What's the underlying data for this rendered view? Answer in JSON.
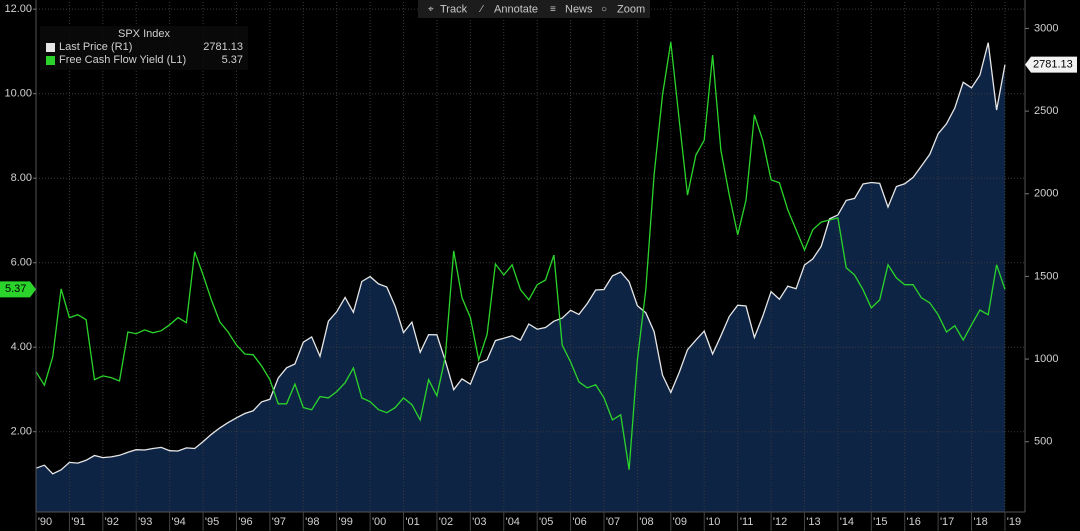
{
  "toolbar": [
    "Track",
    "Annotate",
    "News",
    "Zoom"
  ],
  "chart_data": {
    "type": "line",
    "legend_title": "SPX Index",
    "legend": "upper left",
    "grid": true,
    "x": [
      1990,
      1990.25,
      1990.5,
      1990.75,
      1991,
      1991.25,
      1991.5,
      1991.75,
      1992,
      1992.25,
      1992.5,
      1992.75,
      1993,
      1993.25,
      1993.5,
      1993.75,
      1994,
      1994.25,
      1994.5,
      1994.75,
      1995,
      1995.25,
      1995.5,
      1995.75,
      1996,
      1996.25,
      1996.5,
      1996.75,
      1997,
      1997.25,
      1997.5,
      1997.75,
      1998,
      1998.25,
      1998.5,
      1998.75,
      1999,
      1999.25,
      1999.5,
      1999.75,
      2000,
      2000.25,
      2000.5,
      2000.75,
      2001,
      2001.25,
      2001.5,
      2001.75,
      2002,
      2002.25,
      2002.5,
      2002.75,
      2003,
      2003.25,
      2003.5,
      2003.75,
      2004,
      2004.25,
      2004.5,
      2004.75,
      2005,
      2005.25,
      2005.5,
      2005.75,
      2006,
      2006.25,
      2006.5,
      2006.75,
      2007,
      2007.25,
      2007.5,
      2007.75,
      2008,
      2008.25,
      2008.5,
      2008.75,
      2009,
      2009.25,
      2009.5,
      2009.75,
      2010,
      2010.25,
      2010.5,
      2010.75,
      2011,
      2011.25,
      2011.5,
      2011.75,
      2012,
      2012.25,
      2012.5,
      2012.75,
      2013,
      2013.25,
      2013.5,
      2013.75,
      2014,
      2014.25,
      2014.5,
      2014.75,
      2015,
      2015.25,
      2015.5,
      2015.75,
      2016,
      2016.25,
      2016.5,
      2016.75,
      2017,
      2017.25,
      2017.5,
      2017.75,
      2018,
      2018.25,
      2018.5,
      2018.75,
      2019
    ],
    "series": [
      {
        "name": "Last Price (R1)",
        "color": "#e6e6e6",
        "fill": "#0e2444",
        "axis": "y2",
        "values": [
          340,
          358,
          306,
          330,
          375,
          371,
          388,
          417,
          404,
          408,
          418,
          436,
          452,
          450,
          459,
          466,
          446,
          444,
          463,
          459,
          501,
          545,
          584,
          616,
          645,
          671,
          687,
          741,
          757,
          885,
          947,
          970,
          1102,
          1134,
          1017,
          1229,
          1286,
          1373,
          1283,
          1469,
          1499,
          1455,
          1436,
          1320,
          1160,
          1224,
          1041,
          1148,
          1147,
          990,
          815,
          880,
          848,
          975,
          996,
          1112,
          1126,
          1141,
          1115,
          1212,
          1181,
          1191,
          1229,
          1248,
          1295,
          1270,
          1336,
          1418,
          1421,
          1503,
          1527,
          1468,
          1323,
          1280,
          1166,
          903,
          798,
          919,
          1057,
          1115,
          1169,
          1031,
          1141,
          1258,
          1326,
          1321,
          1131,
          1258,
          1408,
          1362,
          1441,
          1426,
          1569,
          1606,
          1682,
          1848,
          1872,
          1960,
          1972,
          2059,
          2068,
          2063,
          1920,
          2044,
          2060,
          2099,
          2168,
          2239,
          2363,
          2423,
          2519,
          2674,
          2641,
          2718,
          2914,
          2507,
          2781.13
        ]
      },
      {
        "name": "Free Cash Flow Yield (L1)",
        "color": "#2bd42b",
        "axis": "y",
        "values": [
          3.42,
          3.1,
          3.77,
          5.38,
          4.7,
          4.77,
          4.65,
          3.23,
          3.32,
          3.28,
          3.2,
          4.36,
          4.32,
          4.41,
          4.34,
          4.39,
          4.53,
          4.7,
          4.58,
          6.26,
          5.71,
          5.12,
          4.6,
          4.36,
          4.05,
          3.84,
          3.82,
          3.56,
          3.23,
          2.66,
          2.66,
          3.13,
          2.57,
          2.52,
          2.83,
          2.8,
          2.95,
          3.16,
          3.51,
          2.8,
          2.71,
          2.52,
          2.45,
          2.57,
          2.8,
          2.64,
          2.28,
          3.23,
          2.85,
          3.77,
          6.28,
          5.17,
          4.7,
          3.7,
          4.3,
          5.97,
          5.71,
          5.95,
          5.36,
          5.12,
          5.48,
          5.59,
          6.18,
          4.05,
          3.65,
          3.18,
          3.04,
          3.11,
          2.8,
          2.28,
          2.4,
          1.1,
          3.7,
          5.36,
          8.08,
          9.97,
          11.22,
          9.38,
          7.6,
          8.55,
          8.9,
          10.91,
          8.66,
          7.6,
          6.66,
          7.48,
          9.5,
          8.9,
          7.96,
          7.89,
          7.25,
          6.78,
          6.3,
          6.78,
          6.96,
          7.01,
          7.06,
          5.88,
          5.71,
          5.36,
          4.93,
          5.12,
          5.95,
          5.64,
          5.48,
          5.48,
          5.17,
          5.05,
          4.77,
          4.36,
          4.51,
          4.17,
          4.53,
          4.88,
          4.77,
          5.95,
          5.37
        ]
      }
    ],
    "xlim": [
      1990,
      2019.6
    ],
    "xticks": [
      {
        "value": 1990,
        "label": "'90"
      },
      {
        "value": 1991,
        "label": "'91"
      },
      {
        "value": 1992,
        "label": "'92"
      },
      {
        "value": 1993,
        "label": "'93"
      },
      {
        "value": 1994,
        "label": "'94"
      },
      {
        "value": 1995,
        "label": "'95"
      },
      {
        "value": 1996,
        "label": "'96"
      },
      {
        "value": 1997,
        "label": "'97"
      },
      {
        "value": 1998,
        "label": "'98"
      },
      {
        "value": 1999,
        "label": "'99"
      },
      {
        "value": 2000,
        "label": "'00"
      },
      {
        "value": 2001,
        "label": "'01"
      },
      {
        "value": 2002,
        "label": "'02"
      },
      {
        "value": 2003,
        "label": "'03"
      },
      {
        "value": 2004,
        "label": "'04"
      },
      {
        "value": 2005,
        "label": "'05"
      },
      {
        "value": 2006,
        "label": "'06"
      },
      {
        "value": 2007,
        "label": "'07"
      },
      {
        "value": 2008,
        "label": "'08"
      },
      {
        "value": 2009,
        "label": "'09"
      },
      {
        "value": 2010,
        "label": "'10"
      },
      {
        "value": 2011,
        "label": "'11"
      },
      {
        "value": 2012,
        "label": "'12"
      },
      {
        "value": 2013,
        "label": "'13"
      },
      {
        "value": 2014,
        "label": "'14"
      },
      {
        "value": 2015,
        "label": "'15"
      },
      {
        "value": 2016,
        "label": "'16"
      },
      {
        "value": 2017,
        "label": "'17"
      },
      {
        "value": 2018,
        "label": "'18"
      },
      {
        "value": 2019,
        "label": "'19"
      }
    ],
    "ylim": [
      0.1,
      12.17
    ],
    "yticks": [
      {
        "value": 2,
        "label": "2.00"
      },
      {
        "value": 4,
        "label": "4.00"
      },
      {
        "value": 6,
        "label": "6.00"
      },
      {
        "value": 8,
        "label": "8.00"
      },
      {
        "value": 10,
        "label": "10.00"
      },
      {
        "value": 12,
        "label": "12.00"
      }
    ],
    "y2lim": [
      75,
      3160
    ],
    "y2ticks": [
      500,
      1000,
      1500,
      2000,
      2500,
      3000
    ]
  }
}
